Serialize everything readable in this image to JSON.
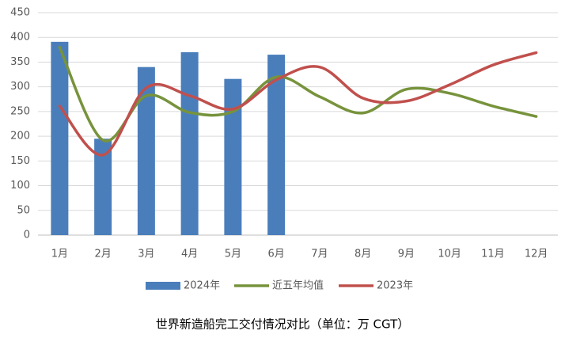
{
  "chart_data": {
    "type": "bar",
    "title": "世界新造船完工交付情况对比（单位：万 CGT）",
    "categories": [
      "1月",
      "2月",
      "3月",
      "4月",
      "5月",
      "6月",
      "7月",
      "8月",
      "9月",
      "10月",
      "11月",
      "12月"
    ],
    "series": [
      {
        "name": "2024年",
        "type": "bar",
        "color": "#4a7ebb",
        "values": [
          391,
          195,
          340,
          370,
          316,
          365,
          null,
          null,
          null,
          null,
          null,
          null
        ]
      },
      {
        "name": "近五年均值",
        "type": "line",
        "color": "#77933c",
        "values": [
          380,
          192,
          282,
          248,
          250,
          320,
          280,
          247,
          295,
          287,
          261,
          240
        ]
      },
      {
        "name": "2023年",
        "type": "line",
        "color": "#c0504d",
        "values": [
          261,
          162,
          298,
          282,
          255,
          314,
          340,
          277,
          271,
          304,
          344,
          369
        ]
      }
    ],
    "ylim": [
      0,
      450
    ],
    "yticks": [
      0,
      50,
      100,
      150,
      200,
      250,
      300,
      350,
      400,
      450
    ],
    "grid": true
  }
}
